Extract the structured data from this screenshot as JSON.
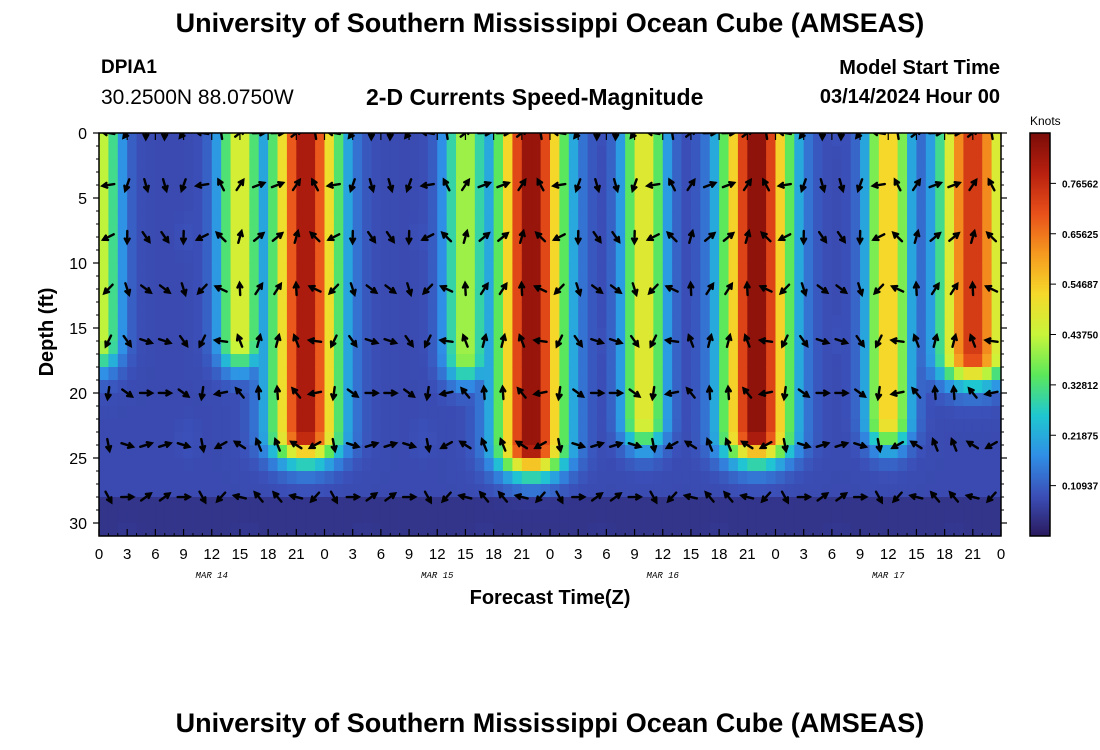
{
  "header": {
    "title": "University of Southern Mississippi Ocean Cube (AMSEAS)",
    "station_id": "DPIA1",
    "coordinates": "30.2500N  88.0750W",
    "subtitle": "2-D Currents Speed-Magnitude",
    "model_start_label": "Model Start Time",
    "model_start_value": "03/14/2024 Hour 00"
  },
  "footer": {
    "title": "University of Southern Mississippi Ocean Cube (AMSEAS)"
  },
  "chart_data": {
    "type": "heatmap",
    "title": "2-D Currents Speed-Magnitude",
    "xlabel": "Forecast Time(Z)",
    "ylabel": "Depth (ft)",
    "x_ticks": [
      "0",
      "3",
      "6",
      "9",
      "12",
      "15",
      "18",
      "21",
      "0",
      "3",
      "6",
      "9",
      "12",
      "15",
      "18",
      "21",
      "0",
      "3",
      "6",
      "9",
      "12",
      "15",
      "18",
      "21",
      "0",
      "3",
      "6",
      "9",
      "12",
      "15",
      "18",
      "21",
      "0"
    ],
    "x_range_hours": [
      0,
      96
    ],
    "date_labels": [
      {
        "label": "MAR 14",
        "hour": 12
      },
      {
        "label": "MAR 15",
        "hour": 36
      },
      {
        "label": "MAR 16",
        "hour": 60
      },
      {
        "label": "MAR 17",
        "hour": 84
      }
    ],
    "y_ticks": [
      "0",
      "5",
      "10",
      "15",
      "20",
      "25",
      "30"
    ],
    "y_range_ft": [
      0,
      31
    ],
    "colorbar": {
      "label": "Knots",
      "range": [
        0,
        0.875
      ],
      "tick_labels": [
        "0.10937",
        "0.21875",
        "0.32812",
        "0.43750",
        "0.54687",
        "0.65625",
        "0.76562"
      ],
      "colors": [
        "#2a1a5e",
        "#3b4fb8",
        "#2f8fe6",
        "#1fc8d0",
        "#5ce85a",
        "#c8f53a",
        "#f5d92a",
        "#f59a1f",
        "#e8501a",
        "#b8200f",
        "#7a0c08"
      ]
    },
    "speed_peaks": [
      {
        "hour": 0,
        "depth_max_ft": 16,
        "speed": 0.45
      },
      {
        "hour": 15,
        "depth_max_ft": 16,
        "speed": 0.48
      },
      {
        "hour": 22,
        "depth_max_ft": 23,
        "speed": 0.82
      },
      {
        "hour": 39,
        "depth_max_ft": 17,
        "speed": 0.42
      },
      {
        "hour": 46,
        "depth_max_ft": 24,
        "speed": 0.85
      },
      {
        "hour": 58,
        "depth_max_ft": 22,
        "speed": 0.5
      },
      {
        "hour": 70,
        "depth_max_ft": 23,
        "speed": 0.86
      },
      {
        "hour": 84,
        "depth_max_ft": 22,
        "speed": 0.55
      },
      {
        "hour": 93,
        "depth_max_ft": 17,
        "speed": 0.75
      }
    ],
    "vector_depths_ft": [
      0,
      4,
      8,
      12,
      16,
      20,
      24,
      28
    ],
    "vector_interval_hours": 2
  }
}
